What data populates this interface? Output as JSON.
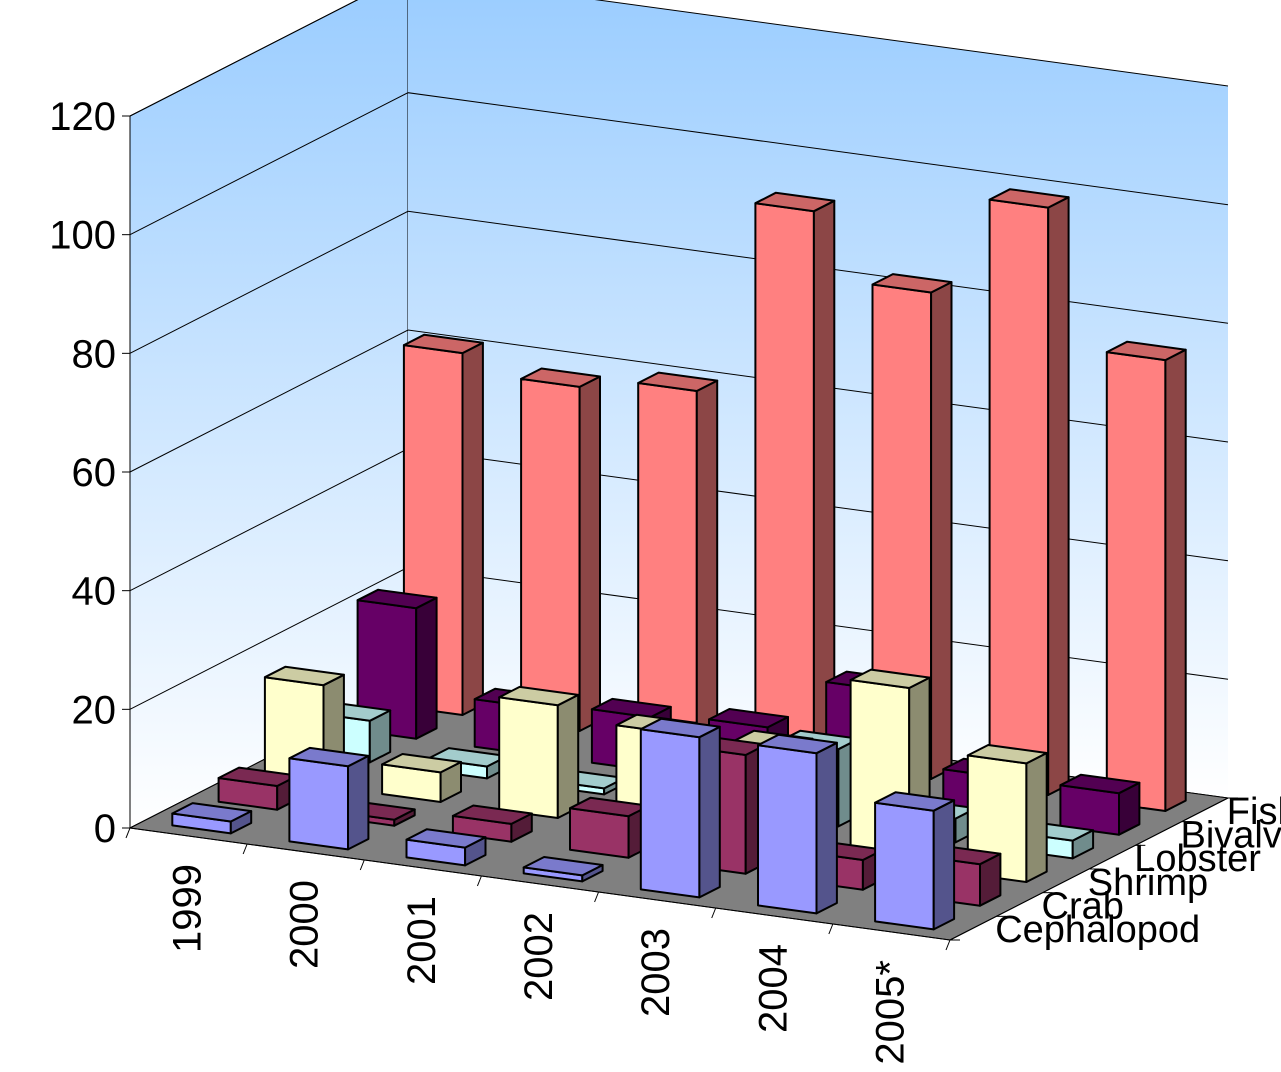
{
  "chart_data": {
    "type": "bar",
    "subtype": "3d-column",
    "title": "",
    "xlabel": "",
    "ylabel": "",
    "ylim": [
      0,
      120
    ],
    "yticks": [
      "0",
      "20",
      "40",
      "60",
      "80",
      "100",
      "120"
    ],
    "grid": true,
    "categories": [
      "1999",
      "2000",
      "2001",
      "2002",
      "2003",
      "2004",
      "2005*"
    ],
    "series": [
      {
        "name": "Cephalopod",
        "color": "#9999ff",
        "values": [
          2,
          14,
          3,
          1,
          27,
          27,
          20
        ]
      },
      {
        "name": "Crab",
        "color": "#993366",
        "values": [
          4,
          1,
          3,
          7,
          20,
          5,
          7
        ]
      },
      {
        "name": "Shrimp",
        "color": "#ffffcc",
        "values": [
          17,
          5,
          19,
          17,
          17,
          30,
          20
        ]
      },
      {
        "name": "Lobster",
        "color": "#ccffff",
        "values": [
          7,
          2,
          1,
          2,
          13,
          4,
          3
        ]
      },
      {
        "name": "Bivalve",
        "color": "#660066",
        "values": [
          22,
          8,
          9,
          10,
          19,
          7,
          7
        ]
      },
      {
        "name": "Fish",
        "color": "#ff8080",
        "values": [
          61,
          58,
          60,
          93,
          82,
          99,
          76
        ]
      }
    ],
    "colors": {
      "wall_top": "#99ccff",
      "wall_bottom": "#ffffff",
      "floor": "#808080",
      "gridline": "#000000"
    }
  }
}
